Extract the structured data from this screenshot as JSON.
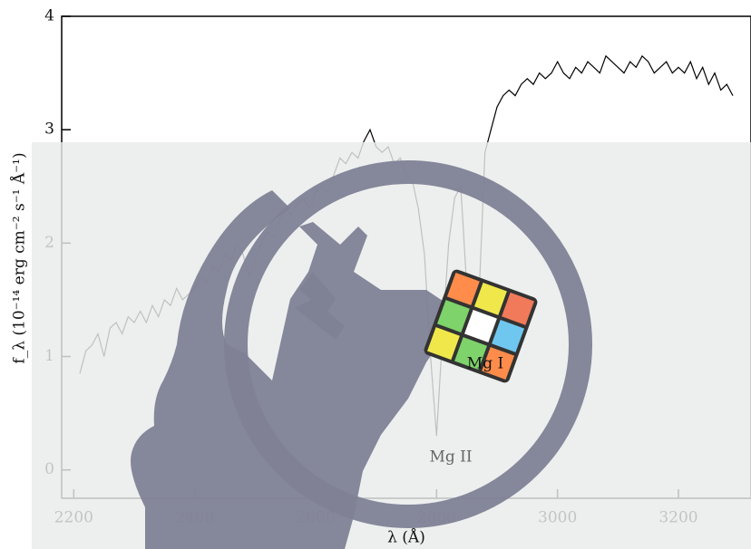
{
  "chart_data": {
    "type": "line",
    "x_label": "λ (Å)",
    "y_label": "f_λ (10⁻¹⁴ erg cm⁻² s⁻¹ Å⁻¹)",
    "annotations": [
      "Mg II",
      "Mg I"
    ],
    "x": [
      2210,
      2220,
      2230,
      2240,
      2250,
      2260,
      2270,
      2280,
      2290,
      2300,
      2310,
      2320,
      2330,
      2340,
      2350,
      2360,
      2370,
      2380,
      2390,
      2400,
      2410,
      2420,
      2430,
      2440,
      2450,
      2460,
      2470,
      2480,
      2490,
      2500,
      2510,
      2520,
      2530,
      2540,
      2550,
      2560,
      2570,
      2580,
      2590,
      2600,
      2610,
      2620,
      2630,
      2640,
      2650,
      2660,
      2670,
      2680,
      2690,
      2700,
      2710,
      2720,
      2730,
      2740,
      2750,
      2760,
      2770,
      2780,
      2790,
      2800,
      2810,
      2820,
      2830,
      2840,
      2850,
      2860,
      2870,
      2880,
      2890,
      2900,
      2910,
      2920,
      2930,
      2940,
      2950,
      2960,
      2970,
      2980,
      2990,
      3000,
      3010,
      3020,
      3030,
      3040,
      3050,
      3060,
      3070,
      3080,
      3090,
      3100,
      3110,
      3120,
      3130,
      3140,
      3150,
      3160,
      3170,
      3180,
      3190,
      3200,
      3210,
      3220,
      3230,
      3240,
      3250,
      3260,
      3270,
      3280,
      3290
    ],
    "series": [
      {
        "color": "#000000",
        "values": [
          0.85,
          1.05,
          1.1,
          1.2,
          1.0,
          1.25,
          1.3,
          1.2,
          1.35,
          1.3,
          1.4,
          1.3,
          1.45,
          1.35,
          1.5,
          1.45,
          1.6,
          1.5,
          1.55,
          1.6,
          1.7,
          1.65,
          1.8,
          1.75,
          1.9,
          1.85,
          2.0,
          1.9,
          1.7,
          1.85,
          2.0,
          2.1,
          2.05,
          2.2,
          2.3,
          2.25,
          2.35,
          2.4,
          2.3,
          2.45,
          2.5,
          2.45,
          2.6,
          2.75,
          2.7,
          2.8,
          2.75,
          2.9,
          3.0,
          2.85,
          2.8,
          2.85,
          2.7,
          2.75,
          2.6,
          2.55,
          2.3,
          1.9,
          1.0,
          0.3,
          1.2,
          2.0,
          2.4,
          2.5,
          1.6,
          0.9,
          1.5,
          2.8,
          3.0,
          3.2,
          3.3,
          3.35,
          3.3,
          3.4,
          3.45,
          3.4,
          3.5,
          3.45,
          3.5,
          3.6,
          3.5,
          3.45,
          3.55,
          3.5,
          3.6,
          3.55,
          3.5,
          3.65,
          3.6,
          3.55,
          3.5,
          3.6,
          3.55,
          3.65,
          3.6,
          3.5,
          3.55,
          3.6,
          3.5,
          3.55,
          3.5,
          3.6,
          3.45,
          3.55,
          3.4,
          3.5,
          3.35,
          3.4,
          3.3
        ]
      }
    ],
    "xlim": [
      2180,
      3320
    ],
    "ylim": [
      -0.25,
      4
    ],
    "xticks": [
      2200,
      2400,
      2600,
      2800,
      3000,
      3200
    ],
    "yticks": [
      0,
      1,
      2,
      3,
      4
    ]
  }
}
